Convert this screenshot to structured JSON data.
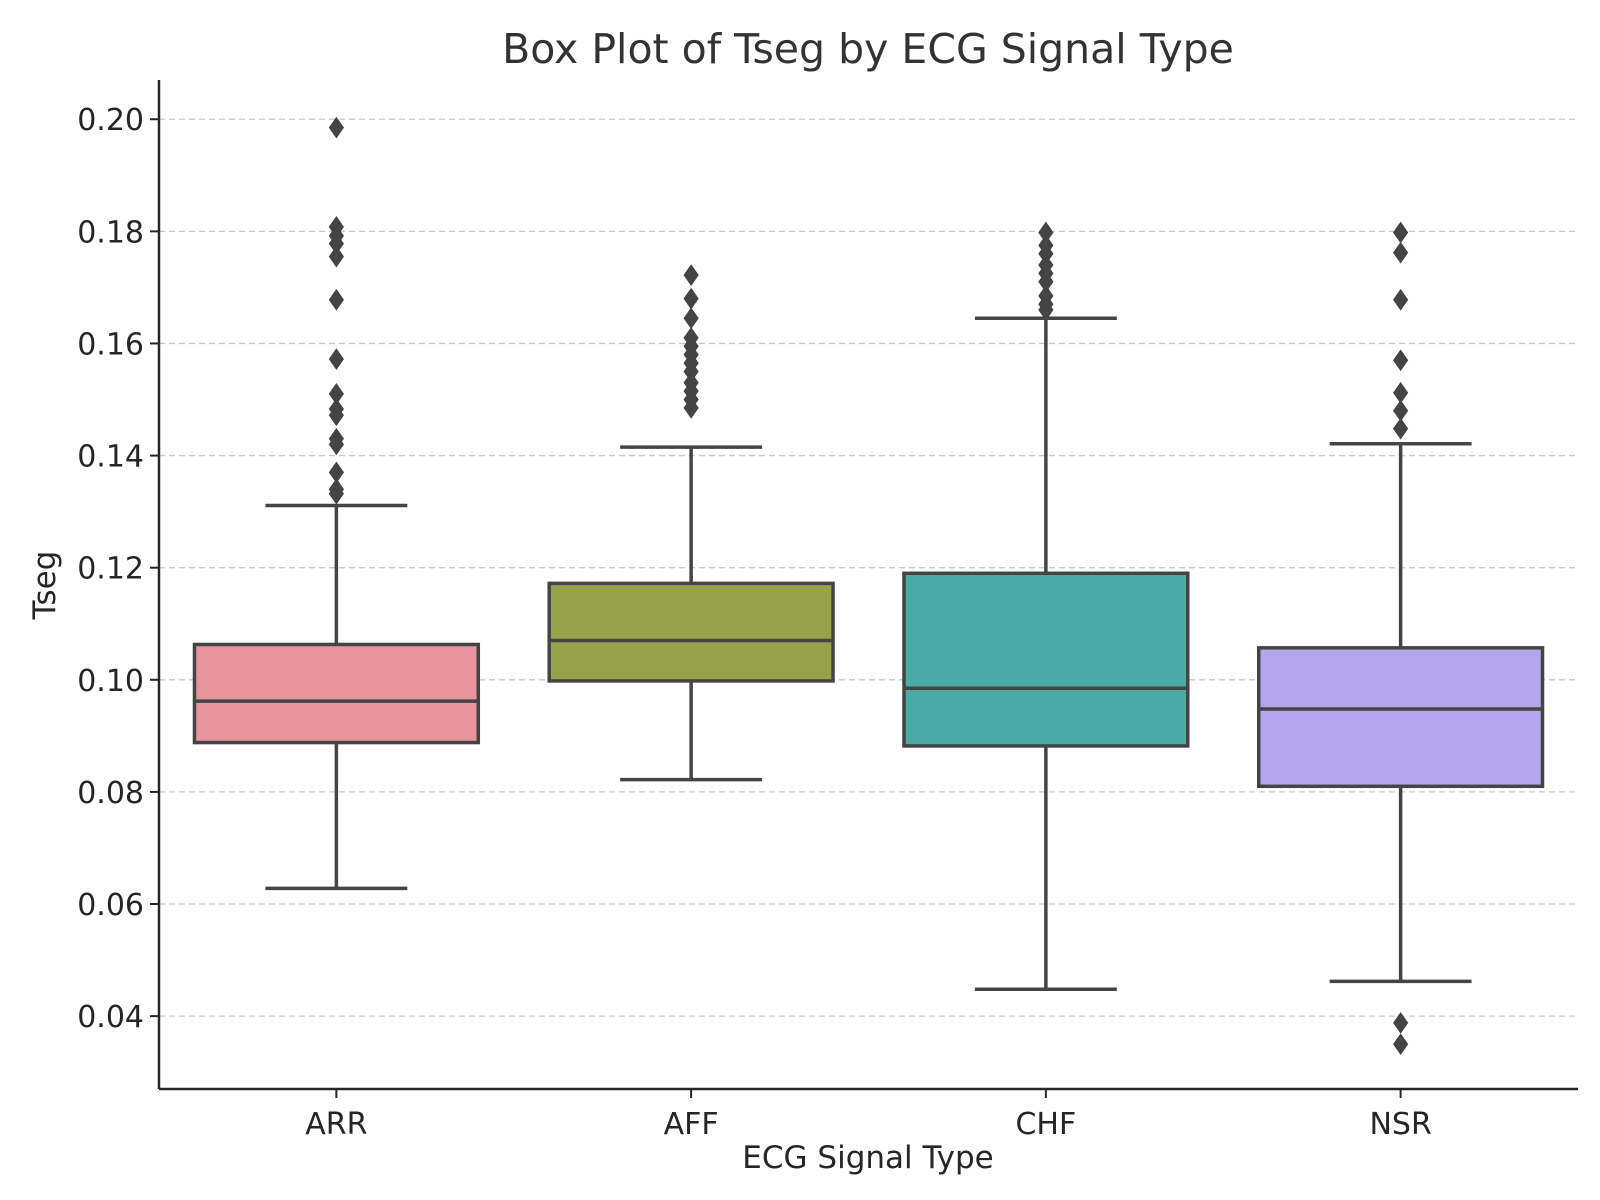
{
  "chart_data": {
    "type": "box",
    "title": "Box Plot of Tseg by ECG Signal Type",
    "xlabel": "ECG Signal Type",
    "ylabel": "Tseg",
    "ylim": [
      0.027,
      0.207
    ],
    "yticks": [
      0.04,
      0.06,
      0.08,
      0.1,
      0.12,
      0.14,
      0.16,
      0.18,
      0.2
    ],
    "ytick_labels": [
      "0.04",
      "0.06",
      "0.08",
      "0.10",
      "0.12",
      "0.14",
      "0.16",
      "0.18",
      "0.20"
    ],
    "grid": "horizontal dashed",
    "categories": [
      "ARR",
      "AFF",
      "CHF",
      "NSR"
    ],
    "boxes": [
      {
        "category": "ARR",
        "color": "#e8949e",
        "whisker_low": 0.0628,
        "q1": 0.0888,
        "median": 0.0962,
        "q3": 0.1063,
        "whisker_high": 0.1311,
        "outliers": [
          0.1332,
          0.134,
          0.137,
          0.142,
          0.143,
          0.1472,
          0.1483,
          0.151,
          0.1572,
          0.1678,
          0.1755,
          0.1778,
          0.1792,
          0.1808,
          0.1985
        ]
      },
      {
        "category": "AFF",
        "color": "#97a348",
        "whisker_low": 0.0822,
        "q1": 0.0998,
        "median": 0.107,
        "q3": 0.1172,
        "whisker_high": 0.1415,
        "outliers": [
          0.1485,
          0.15,
          0.1515,
          0.153,
          0.155,
          0.1565,
          0.158,
          0.1595,
          0.161,
          0.1645,
          0.168,
          0.1722
        ]
      },
      {
        "category": "CHF",
        "color": "#4caaa6",
        "whisker_low": 0.0448,
        "q1": 0.0882,
        "median": 0.0985,
        "q3": 0.119,
        "whisker_high": 0.1645,
        "outliers": [
          0.166,
          0.167,
          0.1685,
          0.171,
          0.1725,
          0.174,
          0.176,
          0.1775,
          0.1798
        ]
      },
      {
        "category": "NSR",
        "color": "#b4a6eb",
        "whisker_low": 0.0462,
        "q1": 0.081,
        "median": 0.0948,
        "q3": 0.1057,
        "whisker_high": 0.1421,
        "outliers": [
          0.035,
          0.0388,
          0.1448,
          0.148,
          0.1512,
          0.157,
          0.1678,
          0.1762,
          0.1798
        ]
      }
    ],
    "line_color": "#444444",
    "grid_color": "#c8c8c8"
  }
}
